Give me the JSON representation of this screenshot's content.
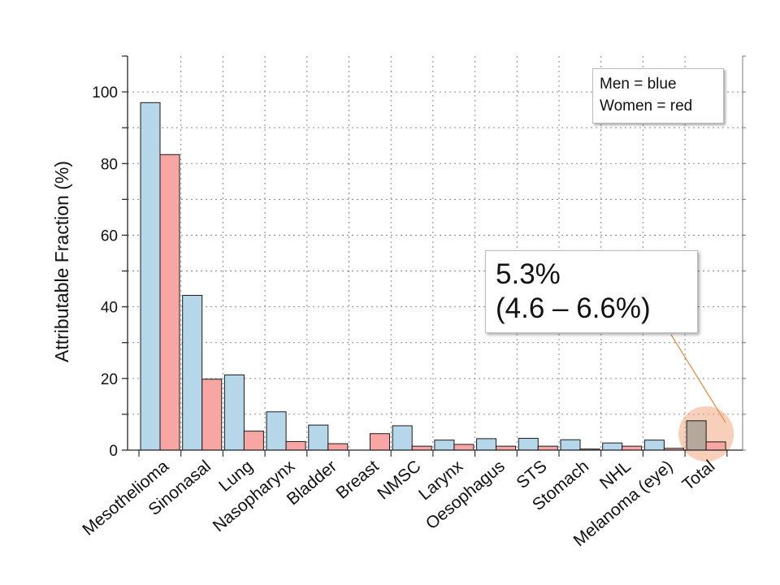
{
  "chart_data": {
    "type": "bar",
    "ylabel": "Attributable Fraction (%)",
    "ylim": [
      0,
      110
    ],
    "yticks": [
      0,
      20,
      40,
      60,
      80,
      100
    ],
    "grid": true,
    "categories": [
      "Mesothelioma",
      "Sinonasal",
      "Lung",
      "Nasopharynx",
      "Bladder",
      "Breast",
      "NMSC",
      "Larynx",
      "Oesophagus",
      "STS",
      "Stomach",
      "NHL",
      "Melanoma (eye)",
      "Total"
    ],
    "series": [
      {
        "name": "Men",
        "color": "#b6d6ea",
        "values": [
          97,
          43.2,
          21,
          10.7,
          7,
          null,
          6.8,
          2.8,
          3.2,
          3.3,
          2.9,
          2.0,
          2.8,
          8.2
        ]
      },
      {
        "name": "Women",
        "color": "#f7a6a3",
        "values": [
          82.5,
          19.8,
          5.3,
          2.4,
          1.8,
          4.6,
          1.1,
          1.6,
          1.1,
          1.1,
          0.3,
          1.1,
          0.5,
          2.3
        ]
      }
    ],
    "highlight": {
      "category": "Total",
      "series": "Men",
      "color": "#f3a782",
      "bar_color": "#b3a89a"
    }
  },
  "legend": {
    "line1": "Men = blue",
    "line2": "Women = red"
  },
  "callout": {
    "line1": "5.3%",
    "line2": "(4.6 – 6.6%)"
  }
}
